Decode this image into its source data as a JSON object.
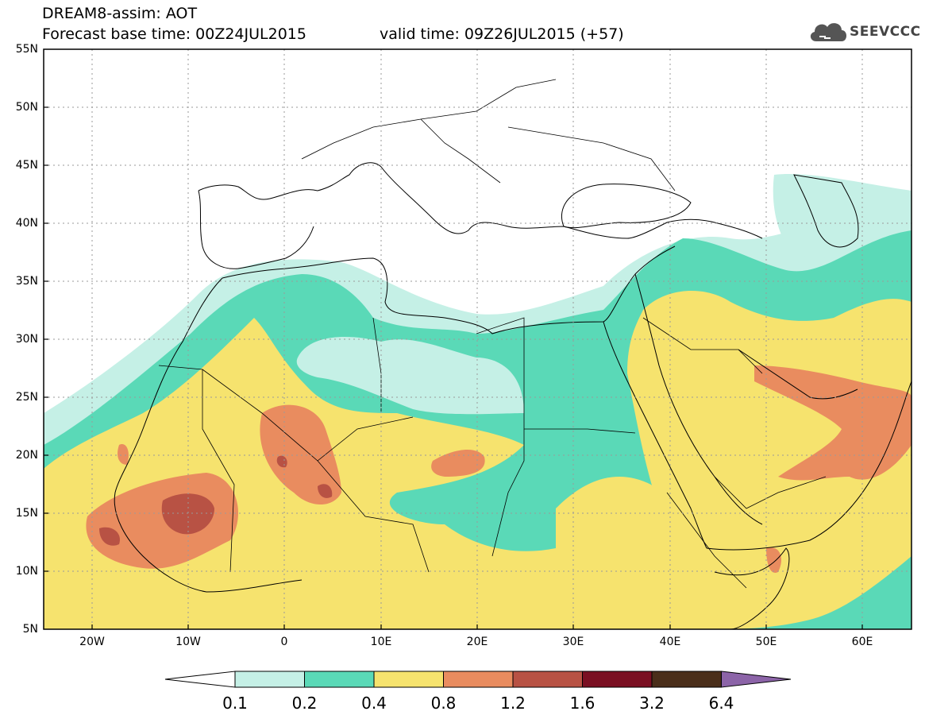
{
  "header": {
    "title": "DREAM8-assim: AOT",
    "base_time": "Forecast base time: 00Z24JUL2015",
    "valid_time": "valid time: 09Z26JUL2015 (+57)"
  },
  "logo": {
    "text": "SEEVCCC",
    "icon": "cloud-icon"
  },
  "axes": {
    "lat_labels": [
      "55N",
      "50N",
      "45N",
      "40N",
      "35N",
      "30N",
      "25N",
      "20N",
      "15N",
      "10N",
      "5N"
    ],
    "lon_labels": [
      "20W",
      "10W",
      "0",
      "10E",
      "20E",
      "30E",
      "40E",
      "50E",
      "60E"
    ]
  },
  "colorbar": {
    "labels": [
      "0.1",
      "0.2",
      "0.4",
      "0.8",
      "1.2",
      "1.6",
      "3.2",
      "6.4"
    ],
    "colors": [
      "#c5f0e6",
      "#5ad9b7",
      "#f6e36e",
      "#e98c5f",
      "#b85244",
      "#7a0f22",
      "#4a2e1a",
      "#8c64a8"
    ]
  }
}
